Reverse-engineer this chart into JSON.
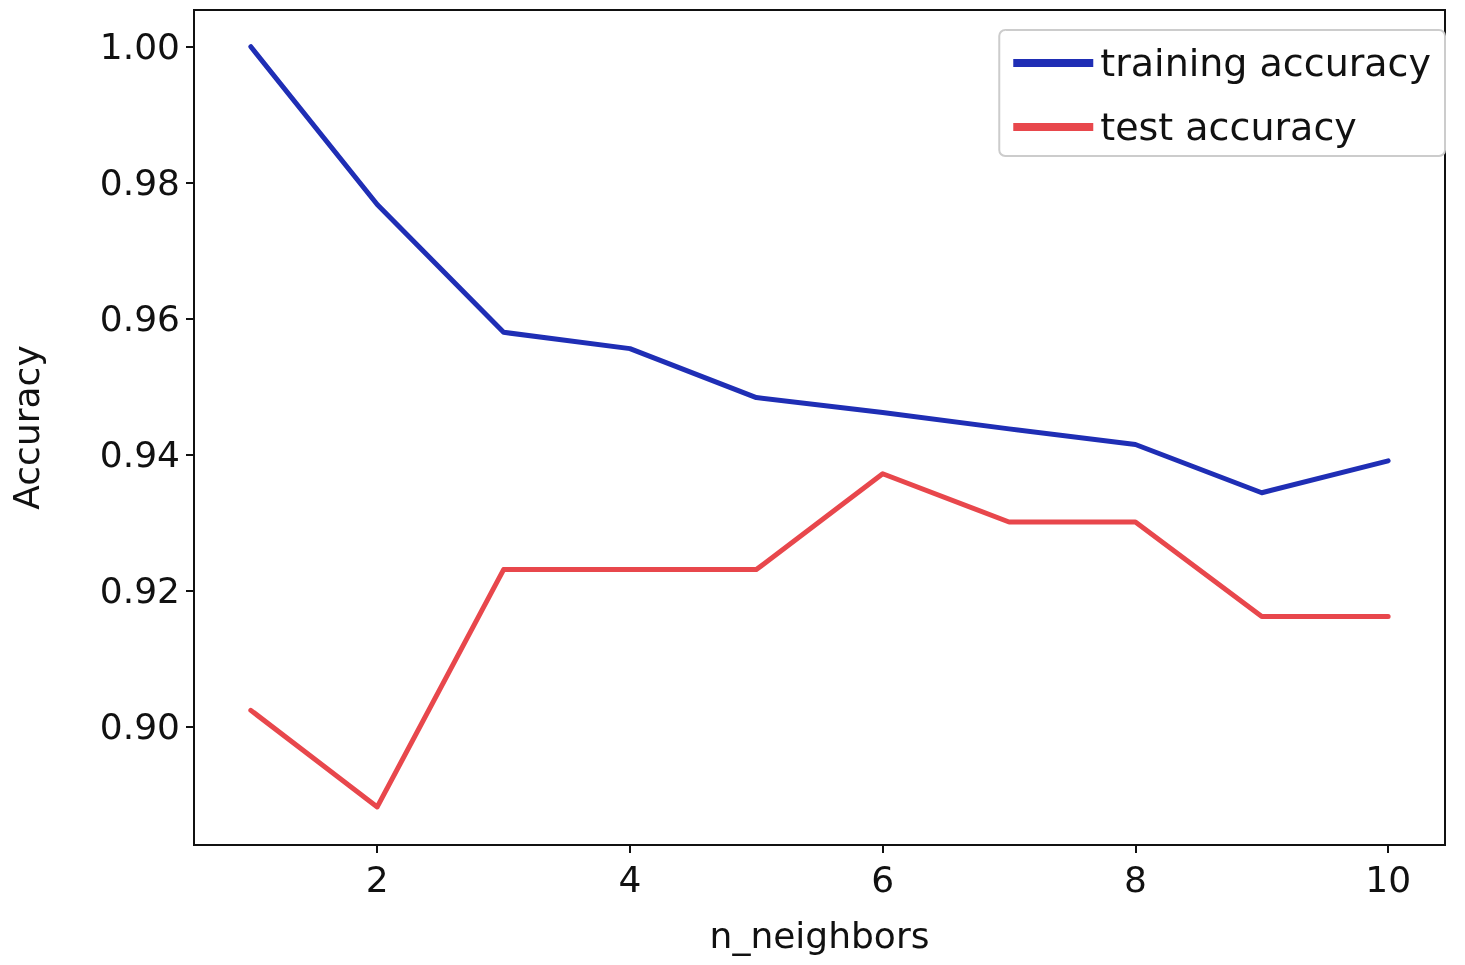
{
  "chart_data": {
    "type": "line",
    "xlabel": "n_neighbors",
    "ylabel": "Accuracy",
    "x": [
      1,
      2,
      3,
      4,
      5,
      6,
      7,
      8,
      9,
      10
    ],
    "series": [
      {
        "name": "training accuracy",
        "color": "#1f2eb5",
        "values": [
          1.0,
          0.9768,
          0.958,
          0.9556,
          0.9484,
          0.9462,
          0.9438,
          0.9415,
          0.9344,
          0.9391
        ]
      },
      {
        "name": "test accuracy",
        "color": "#e8474c",
        "values": [
          0.9024,
          0.8882,
          0.9231,
          0.9231,
          0.9231,
          0.9372,
          0.9301,
          0.9301,
          0.9162,
          0.9162
        ]
      }
    ],
    "xlim": [
      0.55,
      10.45
    ],
    "xticks": [
      2,
      4,
      6,
      8,
      10
    ],
    "ylim": [
      0.8826,
      1.0054
    ],
    "yticks": [
      {
        "value": 0.9,
        "label": "0.90"
      },
      {
        "value": 0.92,
        "label": "0.92"
      },
      {
        "value": 0.94,
        "label": "0.94"
      },
      {
        "value": 0.96,
        "label": "0.96"
      },
      {
        "value": 0.98,
        "label": "0.98"
      },
      {
        "value": 1.0,
        "label": "1.00"
      }
    ],
    "legend": "top right",
    "grid": false,
    "marker": "none",
    "line_style": "solid"
  }
}
